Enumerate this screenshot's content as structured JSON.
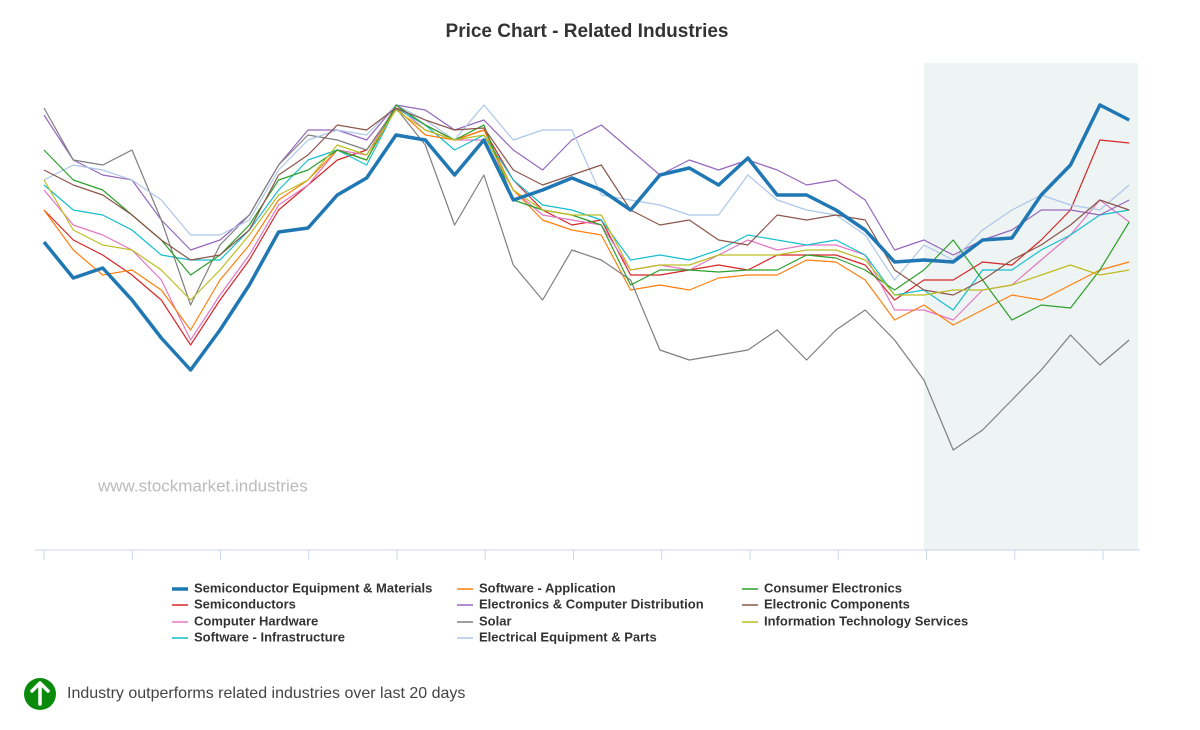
{
  "chart_data": {
    "type": "line",
    "title": "Price Chart - Related Industries",
    "watermark": "www.stockmarket.industries",
    "note": "Industry outperforms related industries over last 20 days",
    "x": [
      0,
      1,
      2,
      3,
      4,
      5,
      6,
      7,
      8,
      9,
      10,
      11,
      12,
      13,
      14,
      15,
      16,
      17,
      18,
      19,
      20,
      21,
      22,
      23,
      24,
      25,
      26,
      27,
      28,
      29,
      30,
      31,
      32,
      33,
      34,
      35,
      36,
      37
    ],
    "xlim": [
      0,
      37.3
    ],
    "ylim": [
      0,
      490
    ],
    "highlight_from": 30,
    "series": [
      {
        "name": "Semiconductor Equipment & Materials",
        "color": "#1f77b4",
        "width": 3.5,
        "values": [
          308,
          272,
          282,
          250,
          212,
          180,
          220,
          265,
          318,
          322,
          355,
          372,
          415,
          410,
          375,
          410,
          350,
          360,
          372,
          360,
          340,
          375,
          382,
          365,
          392,
          355,
          355,
          340,
          320,
          288,
          290,
          288,
          310,
          312,
          355,
          385,
          445,
          430
        ]
      },
      {
        "name": "Semiconductors",
        "color": "#d62728",
        "values": [
          340,
          310,
          295,
          275,
          250,
          205,
          250,
          290,
          340,
          365,
          390,
          400,
          442,
          425,
          410,
          420,
          370,
          340,
          325,
          330,
          275,
          275,
          280,
          285,
          280,
          295,
          295,
          295,
          285,
          250,
          270,
          270,
          288,
          285,
          310,
          340,
          410,
          407
        ]
      },
      {
        "name": "Computer Hardware",
        "color": "#e377c2",
        "values": [
          360,
          325,
          315,
          300,
          270,
          210,
          255,
          295,
          345,
          365,
          400,
          395,
          445,
          420,
          410,
          410,
          360,
          335,
          330,
          325,
          280,
          285,
          280,
          295,
          310,
          300,
          305,
          305,
          295,
          240,
          240,
          230,
          260,
          265,
          290,
          315,
          350,
          328
        ]
      },
      {
        "name": "Software - Infrastructure",
        "color": "#17becf",
        "values": [
          365,
          340,
          335,
          320,
          295,
          290,
          290,
          320,
          360,
          390,
          400,
          385,
          442,
          425,
          400,
          415,
          370,
          345,
          340,
          330,
          290,
          295,
          290,
          300,
          315,
          310,
          305,
          310,
          295,
          255,
          260,
          240,
          280,
          280,
          300,
          315,
          335,
          340
        ]
      },
      {
        "name": "Software - Application",
        "color": "#ff7f0e",
        "values": [
          340,
          300,
          275,
          280,
          260,
          220,
          270,
          305,
          350,
          370,
          400,
          390,
          442,
          415,
          410,
          420,
          360,
          330,
          320,
          315,
          260,
          265,
          260,
          272,
          275,
          275,
          290,
          288,
          270,
          230,
          245,
          225,
          240,
          255,
          250,
          265,
          280,
          288
        ]
      },
      {
        "name": "Electronics & Computer Distribution",
        "color": "#9467bd",
        "values": [
          435,
          390,
          375,
          370,
          330,
          300,
          310,
          335,
          385,
          420,
          420,
          410,
          445,
          440,
          420,
          430,
          400,
          380,
          410,
          425,
          400,
          375,
          390,
          380,
          390,
          380,
          365,
          370,
          350,
          300,
          310,
          295,
          310,
          320,
          340,
          340,
          335,
          350
        ]
      },
      {
        "name": "Solar",
        "color": "#7f7f7f",
        "values": [
          442,
          390,
          385,
          400,
          330,
          245,
          305,
          335,
          385,
          415,
          410,
          400,
          442,
          405,
          325,
          375,
          285,
          250,
          300,
          290,
          270,
          200,
          190,
          195,
          200,
          220,
          190,
          220,
          240,
          210,
          170,
          100,
          120,
          150,
          180,
          215,
          185,
          210
        ]
      },
      {
        "name": "Electrical Equipment & Parts",
        "color": "#aec7e8",
        "values": [
          370,
          385,
          380,
          370,
          350,
          315,
          315,
          330,
          380,
          410,
          420,
          415,
          445,
          430,
          410,
          445,
          410,
          420,
          420,
          355,
          350,
          345,
          335,
          335,
          375,
          350,
          340,
          335,
          315,
          270,
          305,
          290,
          320,
          340,
          355,
          345,
          340,
          365
        ]
      },
      {
        "name": "Consumer Electronics",
        "color": "#2ca02c",
        "values": [
          400,
          370,
          360,
          335,
          310,
          275,
          295,
          325,
          370,
          380,
          400,
          390,
          445,
          425,
          410,
          425,
          350,
          340,
          335,
          325,
          265,
          280,
          280,
          278,
          280,
          280,
          295,
          292,
          280,
          260,
          280,
          310,
          270,
          230,
          245,
          242,
          280,
          328
        ]
      },
      {
        "name": "Electronic Components",
        "color": "#8c564b",
        "values": [
          380,
          365,
          355,
          335,
          310,
          290,
          295,
          320,
          375,
          395,
          425,
          420,
          442,
          430,
          420,
          422,
          380,
          365,
          375,
          385,
          340,
          325,
          330,
          310,
          305,
          335,
          330,
          335,
          330,
          280,
          260,
          255,
          270,
          290,
          305,
          325,
          350,
          340
        ]
      },
      {
        "name": "Information Technology Services",
        "color": "#bcbd22",
        "values": [
          370,
          320,
          305,
          300,
          280,
          250,
          280,
          315,
          355,
          370,
          405,
          395,
          440,
          420,
          410,
          415,
          360,
          340,
          335,
          335,
          280,
          285,
          285,
          295,
          295,
          295,
          300,
          300,
          290,
          255,
          255,
          260,
          260,
          265,
          275,
          285,
          275,
          280
        ]
      }
    ]
  }
}
